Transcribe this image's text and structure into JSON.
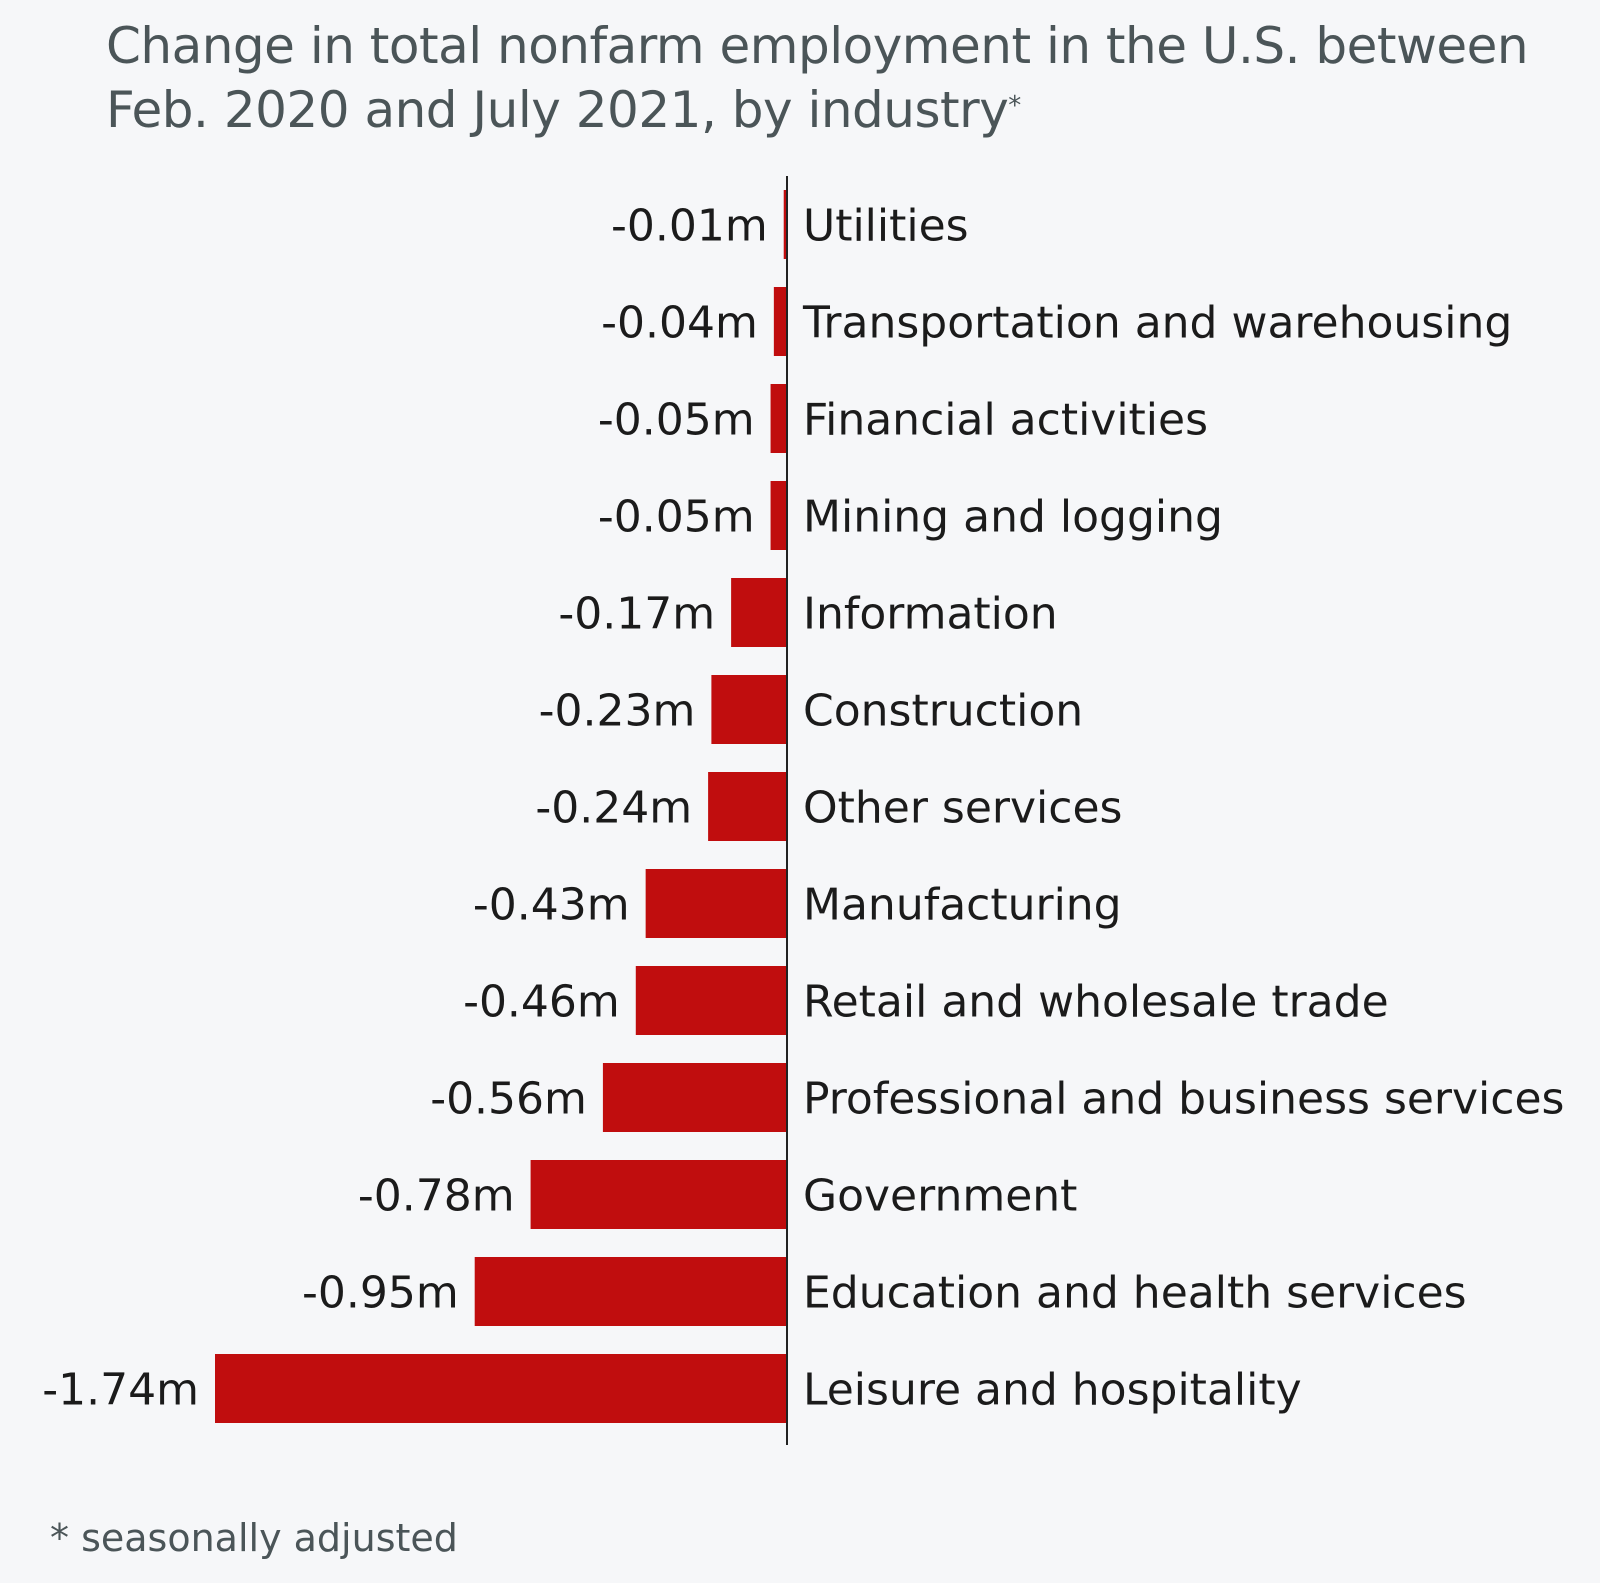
{
  "title_main": "Change in total nonfarm employment in the U.S. between Feb. 2020 and July 2021, by industry",
  "title_mark": "*",
  "footnote": "* seasonally adjusted",
  "colors": {
    "bar": "#c00d0e",
    "axis": "#222222",
    "label": "#1b1b1b",
    "background": "#f6f7f9"
  },
  "chart_data": {
    "type": "bar",
    "orientation": "horizontal",
    "unit": "m",
    "categories": [
      "Utilities",
      "Transportation and warehousing",
      "Financial activities",
      "Mining and logging",
      "Information",
      "Construction",
      "Other services",
      "Manufacturing",
      "Retail and wholesale trade",
      "Professional and business services",
      "Government",
      "Education and health services",
      "Leisure and hospitality"
    ],
    "values": [
      -0.01,
      -0.04,
      -0.05,
      -0.05,
      -0.17,
      -0.23,
      -0.24,
      -0.43,
      -0.46,
      -0.56,
      -0.78,
      -0.95,
      -1.74
    ],
    "value_labels": [
      "-0.01m",
      "-0.04m",
      "-0.05m",
      "-0.05m",
      "-0.17m",
      "-0.23m",
      "-0.24m",
      "-0.43m",
      "-0.46m",
      "-0.56m",
      "-0.78m",
      "-0.95m",
      "-1.74m"
    ],
    "xlim": [
      -1.74,
      0
    ],
    "grid": false,
    "legend": "none"
  }
}
